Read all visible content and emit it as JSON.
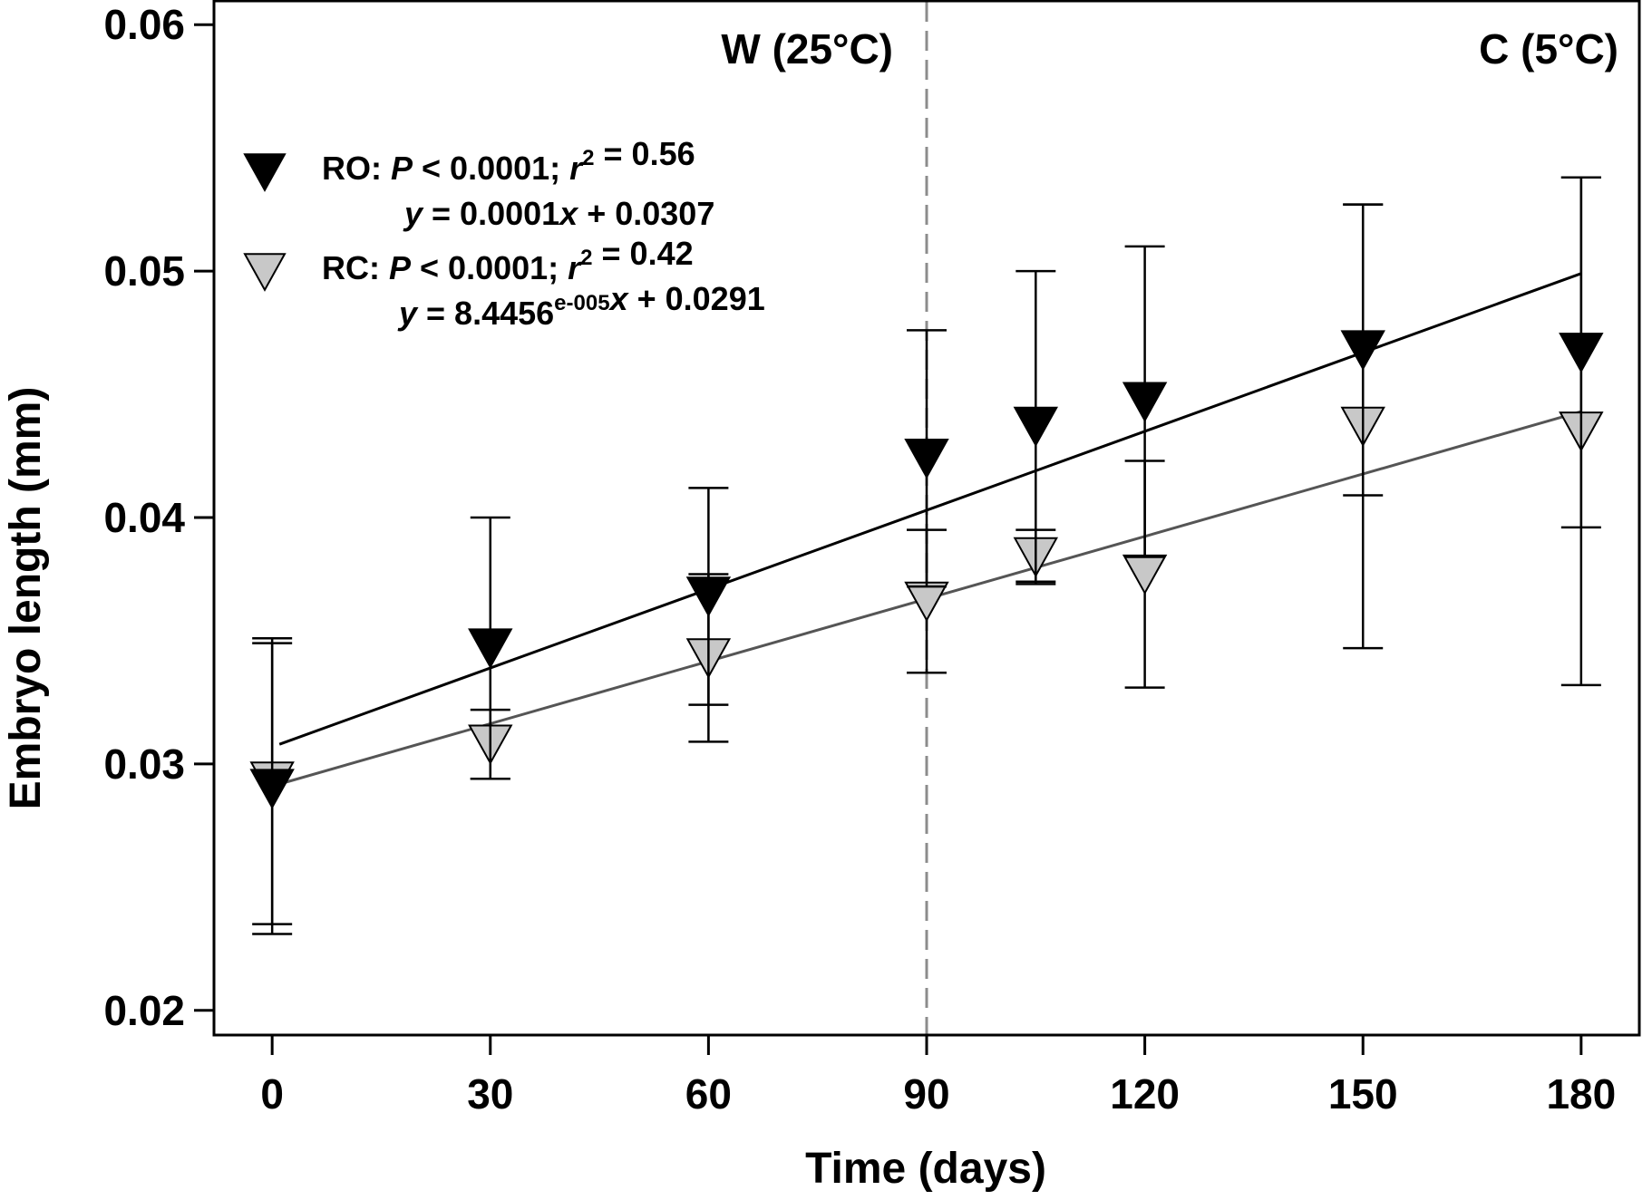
{
  "chart_data": {
    "type": "scatter",
    "xlabel": "Time (days)",
    "ylabel": "Embryo length (mm)",
    "xlim": [
      -8,
      188
    ],
    "ylim": [
      0.019,
      0.061
    ],
    "xticks": [
      0,
      30,
      60,
      90,
      120,
      150,
      180
    ],
    "xtick_labels": [
      "0",
      "30",
      "60",
      "90",
      "120",
      "150",
      "180"
    ],
    "yticks": [
      0.02,
      0.03,
      0.04,
      0.05,
      0.06
    ],
    "ytick_labels": [
      "0.02",
      "0.03",
      "0.04",
      "0.05",
      "0.06"
    ],
    "grid": false,
    "legend_position": "top-left",
    "reference_line": {
      "x": 90,
      "style": "dashed",
      "color": "#8c8c8c"
    },
    "regions": [
      {
        "label": "W (25°C)",
        "position": "left of reference line"
      },
      {
        "label": "C (5°C)",
        "position": "top-right"
      }
    ],
    "series": [
      {
        "name": "RO",
        "marker": "triangle-down",
        "fill": "#000000",
        "line_color": "#000000",
        "points": [
          {
            "x": 0,
            "y": 0.029,
            "err": 0.0059
          },
          {
            "x": 30,
            "y": 0.0347,
            "err": 0.0053
          },
          {
            "x": 60,
            "y": 0.0368,
            "err": 0.0044
          },
          {
            "x": 90,
            "y": 0.0424,
            "err": 0.0052
          },
          {
            "x": 105,
            "y": 0.0437,
            "err": 0.0063
          },
          {
            "x": 120,
            "y": 0.0447,
            "err": 0.0063
          },
          {
            "x": 150,
            "y": 0.0468,
            "err": 0.0059
          },
          {
            "x": 180,
            "y": 0.0467,
            "err": 0.0071
          }
        ],
        "fit": {
          "x": [
            1,
            180
          ],
          "y": [
            0.0308,
            0.0499
          ]
        },
        "stats": {
          "prefix": "RO:",
          "p_italic": "P",
          "p_text": " < 0.0001; ",
          "r_italic": "r",
          "r_exp": "2",
          "r_value": " = 0.56"
        },
        "equation": {
          "y_italic": "y",
          "lhs": " = 0.0001",
          "x_italic": "x",
          "rhs": " + 0.0307"
        }
      },
      {
        "name": "RC",
        "marker": "triangle-down",
        "fill": "#c8c8c8",
        "line_color": "#555555",
        "points": [
          {
            "x": 0,
            "y": 0.0293,
            "err": 0.0058
          },
          {
            "x": 30,
            "y": 0.0308,
            "err": 0.0014
          },
          {
            "x": 60,
            "y": 0.0343,
            "err": 0.0034
          },
          {
            "x": 90,
            "y": 0.0366,
            "err": 0.0029
          },
          {
            "x": 105,
            "y": 0.0384,
            "err": 0.0011
          },
          {
            "x": 120,
            "y": 0.0377,
            "err": 0.0046
          },
          {
            "x": 150,
            "y": 0.0437,
            "err": 0.009
          },
          {
            "x": 180,
            "y": 0.0435,
            "err": 0.0103
          }
        ],
        "fit": {
          "x": [
            0,
            180
          ],
          "y": [
            0.0291,
            0.0443
          ]
        },
        "stats": {
          "prefix": "RC:",
          "p_italic": "P",
          "p_text": " < 0.0001; ",
          "r_italic": "r",
          "r_exp": "2",
          "r_value": " = 0.42"
        },
        "equation": {
          "y_italic": "y",
          "lhs": " = 8.4456",
          "exp": "e-005",
          "x_italic": "x",
          "rhs": " + 0.0291"
        }
      }
    ]
  }
}
